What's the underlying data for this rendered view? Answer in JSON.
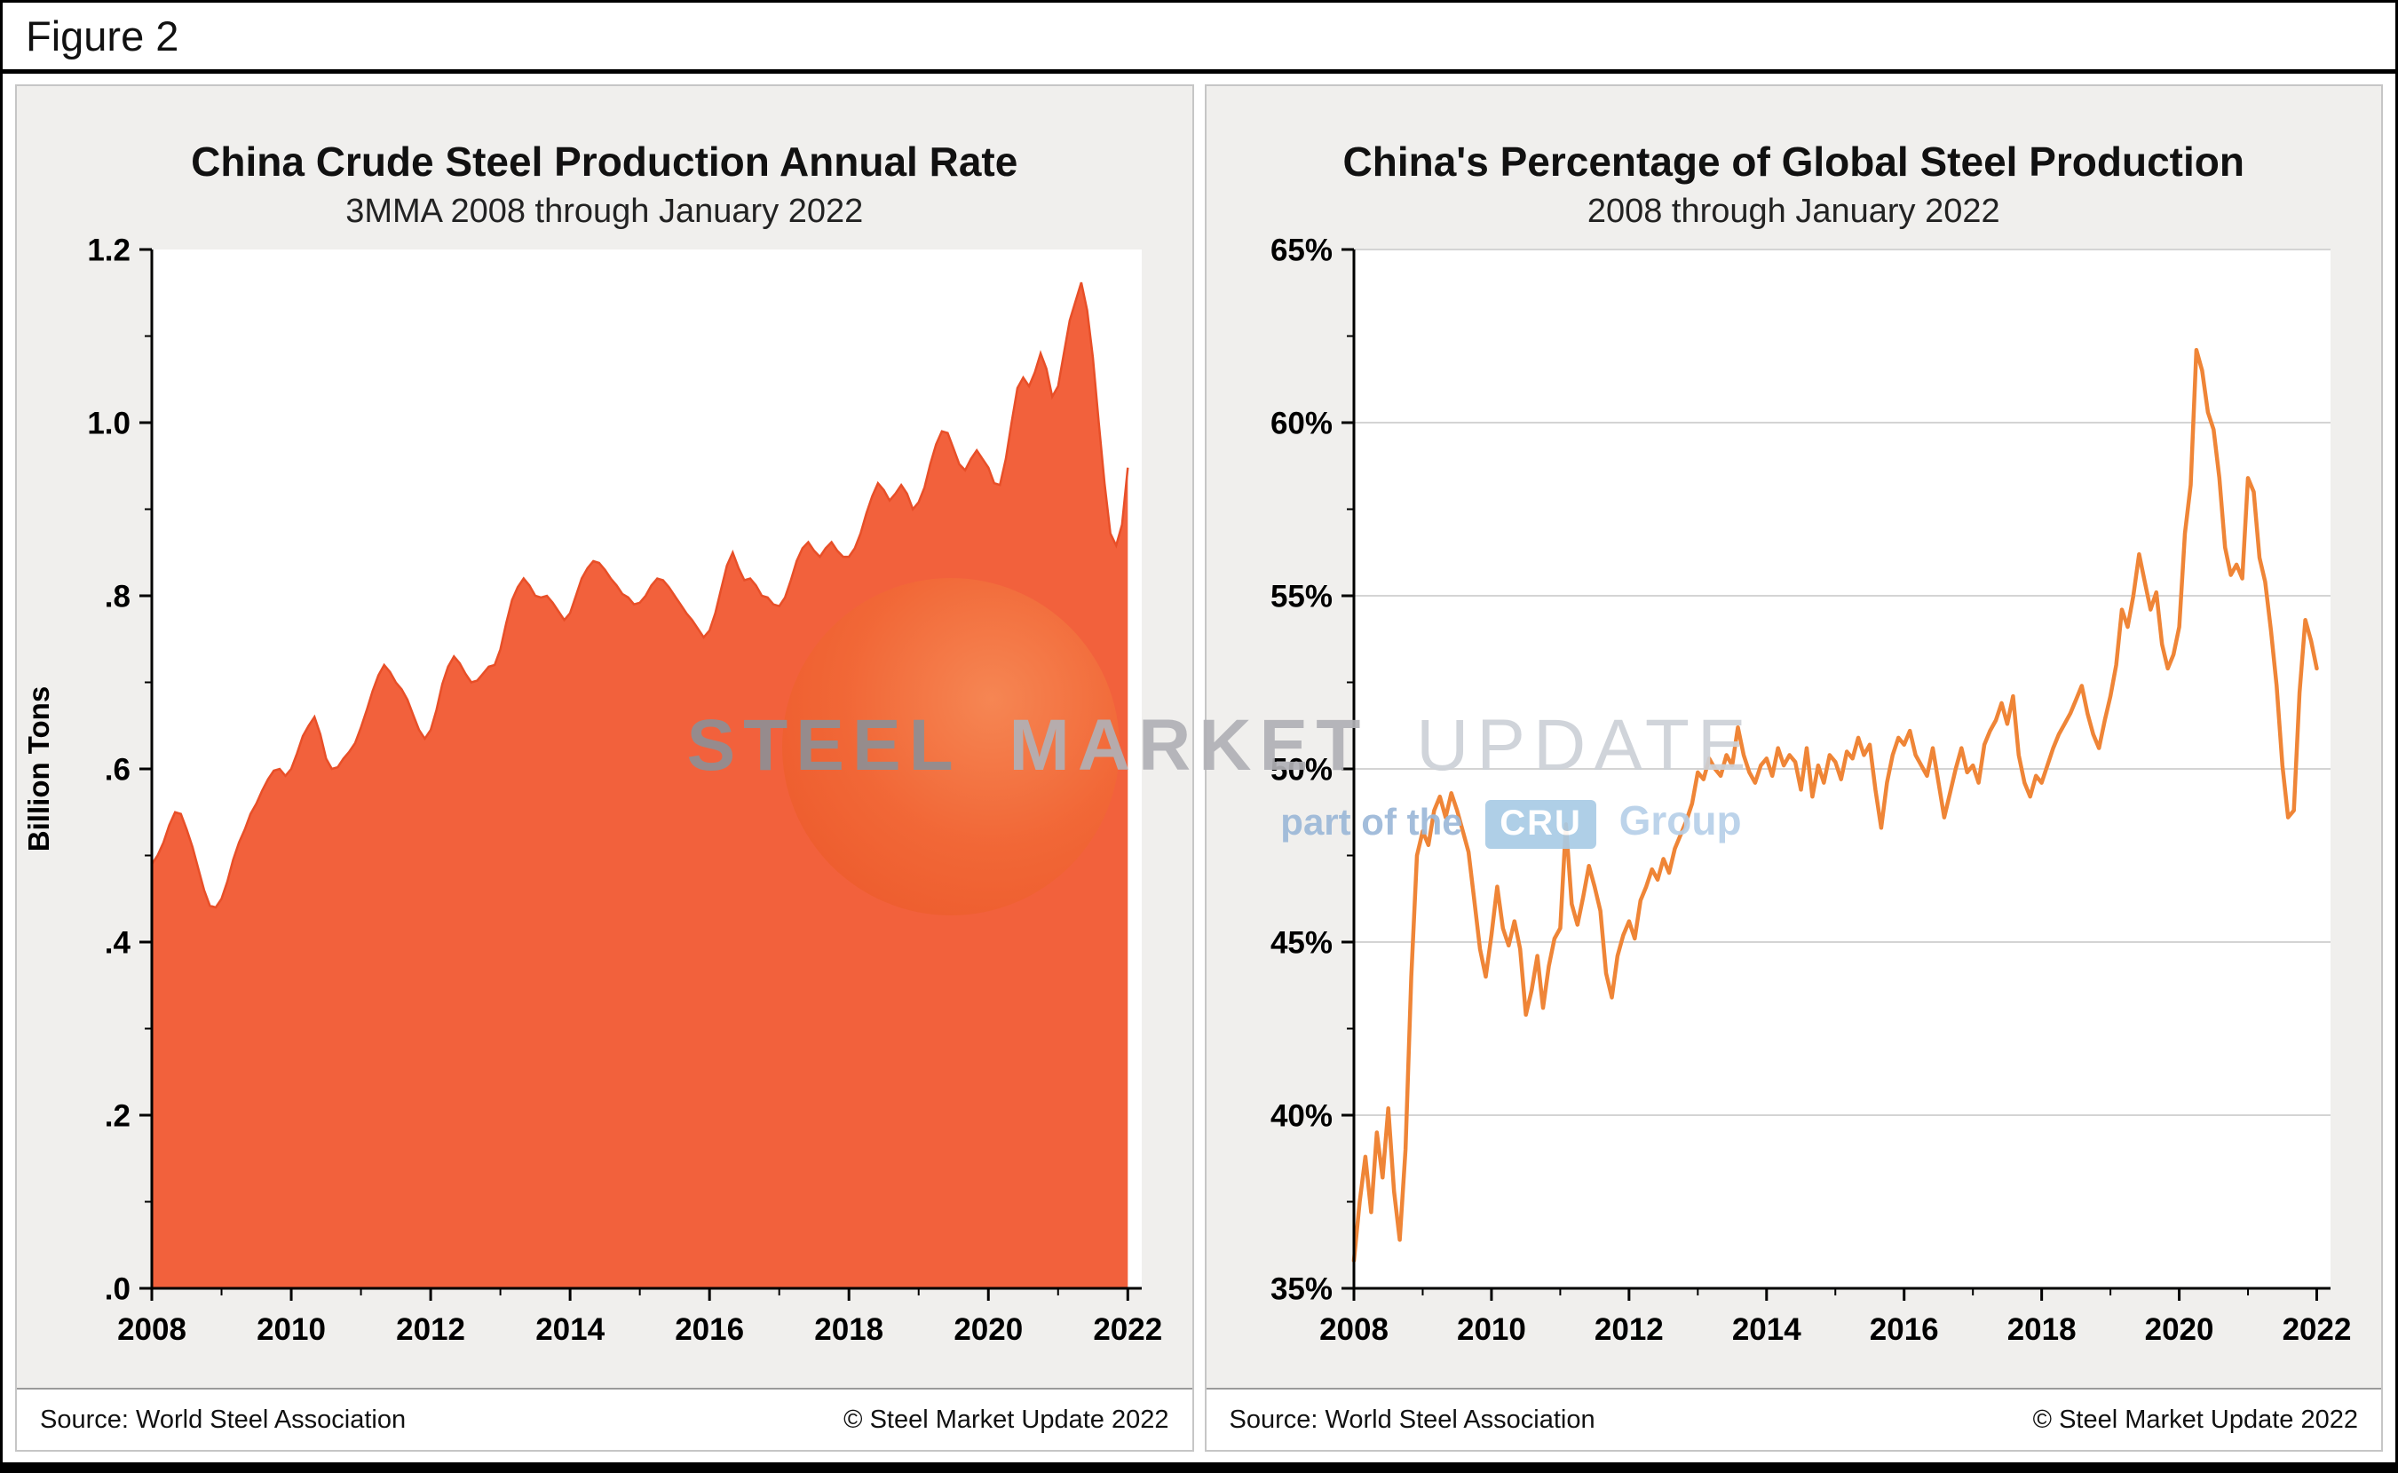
{
  "figure": {
    "label": "Figure 2"
  },
  "footer": {
    "source": "Source: World Steel Association",
    "copyright": "© Steel Market Update 2022"
  },
  "watermark": {
    "word1": "STEEL",
    "word2": "MARKET",
    "word3": "UPDATE",
    "tagline_prefix": "part of the",
    "logo_text": "CRU",
    "tagline_suffix": "Group"
  },
  "colors": {
    "area_fill": "#f2613c",
    "area_edge": "#e84f28",
    "line": "#ef8537",
    "grid": "#d4d4d4",
    "panel_bg": "#f0efed",
    "axis": "#000000"
  },
  "chart_data": [
    {
      "type": "area",
      "title": "China Crude Steel Production Annual Rate",
      "subtitle": "3MMA 2008 through January 2022",
      "ylabel": "Billion Tons",
      "x_note": "monthly 3MMA values, January 2008 through January 2022",
      "x_start": 2008,
      "x_step": 0.0833333,
      "xlim": [
        2008,
        2022.2
      ],
      "ylim": [
        0,
        1.2
      ],
      "grid": false,
      "color": "#f2613c",
      "edge_color": "#e84f28",
      "xticks": [
        2008,
        2010,
        2012,
        2014,
        2016,
        2018,
        2020,
        2022
      ],
      "xtick_labels": [
        "2008",
        "2010",
        "2012",
        "2014",
        "2016",
        "2018",
        "2020",
        "2022"
      ],
      "yticks": [
        {
          "v": 0.0,
          "label": ".0"
        },
        {
          "v": 0.2,
          "label": ".2"
        },
        {
          "v": 0.4,
          "label": ".4"
        },
        {
          "v": 0.6,
          "label": ".6"
        },
        {
          "v": 0.8,
          "label": ".8"
        },
        {
          "v": 1.0,
          "label": "1.0"
        },
        {
          "v": 1.2,
          "label": "1.2"
        }
      ],
      "values": [
        0.49,
        0.5,
        0.515,
        0.535,
        0.55,
        0.548,
        0.53,
        0.51,
        0.485,
        0.46,
        0.442,
        0.44,
        0.45,
        0.47,
        0.495,
        0.515,
        0.53,
        0.548,
        0.56,
        0.575,
        0.588,
        0.598,
        0.6,
        0.592,
        0.6,
        0.618,
        0.638,
        0.65,
        0.66,
        0.64,
        0.612,
        0.6,
        0.602,
        0.612,
        0.62,
        0.63,
        0.648,
        0.668,
        0.69,
        0.708,
        0.72,
        0.712,
        0.7,
        0.692,
        0.68,
        0.662,
        0.645,
        0.635,
        0.645,
        0.668,
        0.698,
        0.718,
        0.73,
        0.722,
        0.71,
        0.7,
        0.702,
        0.71,
        0.718,
        0.72,
        0.738,
        0.768,
        0.795,
        0.81,
        0.82,
        0.812,
        0.8,
        0.798,
        0.8,
        0.792,
        0.782,
        0.772,
        0.78,
        0.8,
        0.82,
        0.832,
        0.84,
        0.838,
        0.83,
        0.82,
        0.812,
        0.802,
        0.798,
        0.79,
        0.792,
        0.8,
        0.812,
        0.82,
        0.818,
        0.81,
        0.8,
        0.79,
        0.78,
        0.772,
        0.762,
        0.752,
        0.76,
        0.78,
        0.808,
        0.835,
        0.85,
        0.832,
        0.818,
        0.82,
        0.812,
        0.8,
        0.798,
        0.79,
        0.788,
        0.798,
        0.818,
        0.84,
        0.855,
        0.862,
        0.852,
        0.845,
        0.855,
        0.862,
        0.852,
        0.845,
        0.845,
        0.855,
        0.872,
        0.895,
        0.915,
        0.93,
        0.922,
        0.91,
        0.918,
        0.928,
        0.918,
        0.9,
        0.908,
        0.925,
        0.952,
        0.975,
        0.99,
        0.988,
        0.97,
        0.952,
        0.945,
        0.958,
        0.968,
        0.958,
        0.948,
        0.93,
        0.928,
        0.958,
        1.0,
        1.04,
        1.052,
        1.042,
        1.058,
        1.08,
        1.062,
        1.03,
        1.042,
        1.08,
        1.118,
        1.14,
        1.162,
        1.13,
        1.075,
        1.0,
        0.93,
        0.872,
        0.858,
        0.882,
        0.948
      ]
    },
    {
      "type": "line",
      "title": "China's Percentage of Global Steel Production",
      "subtitle": "2008 through January 2022",
      "ylabel": "",
      "x_note": "monthly percentage values, January 2008 through January 2022",
      "x_start": 2008,
      "x_step": 0.0833333,
      "xlim": [
        2008,
        2022.2
      ],
      "ylim": [
        35,
        65
      ],
      "grid": true,
      "color": "#ef8537",
      "xticks": [
        2008,
        2010,
        2012,
        2014,
        2016,
        2018,
        2020,
        2022
      ],
      "xtick_labels": [
        "2008",
        "2010",
        "2012",
        "2014",
        "2016",
        "2018",
        "2020",
        "2022"
      ],
      "yticks": [
        {
          "v": 35,
          "label": "35%"
        },
        {
          "v": 40,
          "label": "40%"
        },
        {
          "v": 45,
          "label": "45%"
        },
        {
          "v": 50,
          "label": "50%"
        },
        {
          "v": 55,
          "label": "55%"
        },
        {
          "v": 60,
          "label": "60%"
        },
        {
          "v": 65,
          "label": "65%"
        }
      ],
      "values": [
        35.8,
        37.5,
        38.8,
        37.2,
        39.5,
        38.2,
        40.2,
        37.8,
        36.4,
        39.0,
        44.0,
        47.5,
        48.2,
        47.8,
        48.8,
        49.2,
        48.6,
        49.3,
        48.8,
        48.2,
        47.6,
        46.2,
        44.8,
        44.0,
        45.2,
        46.6,
        45.4,
        44.9,
        45.6,
        44.8,
        42.9,
        43.6,
        44.6,
        43.1,
        44.3,
        45.1,
        45.4,
        48.4,
        46.1,
        45.5,
        46.3,
        47.2,
        46.6,
        45.9,
        44.1,
        43.4,
        44.6,
        45.2,
        45.6,
        45.1,
        46.2,
        46.6,
        47.1,
        46.8,
        47.4,
        47.0,
        47.7,
        48.1,
        48.5,
        49.0,
        49.9,
        49.7,
        50.3,
        50.0,
        49.8,
        50.4,
        50.1,
        51.2,
        50.4,
        49.9,
        49.6,
        50.1,
        50.3,
        49.8,
        50.6,
        50.1,
        50.4,
        50.2,
        49.4,
        50.6,
        49.2,
        50.1,
        49.6,
        50.4,
        50.2,
        49.7,
        50.5,
        50.3,
        50.9,
        50.4,
        50.7,
        49.4,
        48.3,
        49.6,
        50.4,
        50.9,
        50.7,
        51.1,
        50.4,
        50.1,
        49.8,
        50.6,
        49.6,
        48.6,
        49.3,
        50.0,
        50.6,
        49.9,
        50.1,
        49.6,
        50.7,
        51.1,
        51.4,
        51.9,
        51.3,
        52.1,
        50.4,
        49.6,
        49.2,
        49.8,
        49.6,
        50.1,
        50.6,
        51.0,
        51.3,
        51.6,
        52.0,
        52.4,
        51.6,
        51.0,
        50.6,
        51.4,
        52.1,
        53.0,
        54.6,
        54.1,
        55.0,
        56.2,
        55.4,
        54.6,
        55.1,
        53.6,
        52.9,
        53.3,
        54.1,
        56.8,
        58.2,
        62.1,
        61.5,
        60.3,
        59.8,
        58.4,
        56.4,
        55.6,
        55.9,
        55.5,
        58.4,
        58.0,
        56.1,
        55.4,
        54.0,
        52.4,
        50.1,
        48.6,
        48.8,
        52.2,
        54.3,
        53.7,
        52.9
      ]
    }
  ]
}
